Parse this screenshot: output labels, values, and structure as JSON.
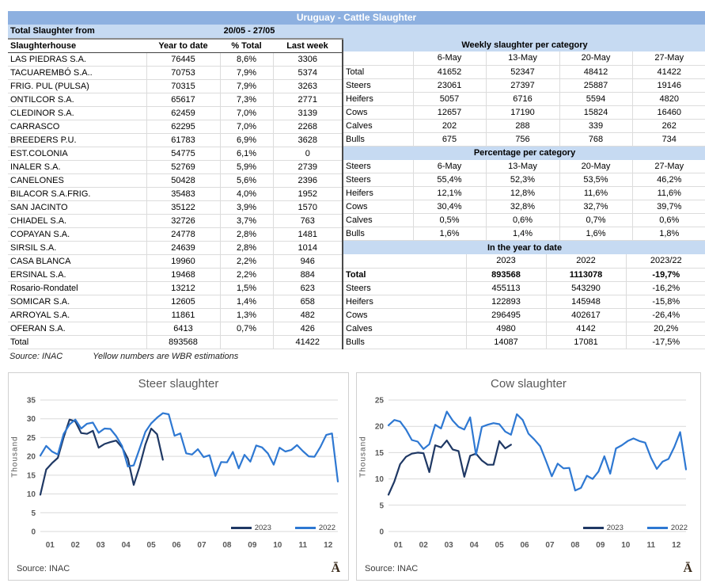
{
  "header": {
    "title": "Uruguay - Cattle Slaughter",
    "period_label": "Total Slaughter from",
    "period_value": "20/05 - 27/05"
  },
  "left_table": {
    "headers": [
      "Slaughterhouse",
      "Year to date",
      "% Total",
      "Last week"
    ],
    "rows": [
      [
        "LAS PIEDRAS S.A.",
        "76445",
        "8,6%",
        "3306"
      ],
      [
        "TACUAREMBÓ S.A..",
        "70753",
        "7,9%",
        "5374"
      ],
      [
        "FRIG. PUL (PULSA)",
        "70315",
        "7,9%",
        "3263"
      ],
      [
        "ONTILCOR S.A.",
        "65617",
        "7,3%",
        "2771"
      ],
      [
        "CLEDINOR S.A.",
        "62459",
        "7,0%",
        "3139"
      ],
      [
        "CARRASCO",
        "62295",
        "7,0%",
        "2268"
      ],
      [
        "BREEDERS P.U.",
        "61783",
        "6,9%",
        "3628"
      ],
      [
        "EST.COLONIA",
        "54775",
        "6,1%",
        "0"
      ],
      [
        "INALER S.A.",
        "52769",
        "5,9%",
        "2739"
      ],
      [
        "CANELONES",
        "50428",
        "5,6%",
        "2396"
      ],
      [
        "BILACOR S.A.FRIG.",
        "35483",
        "4,0%",
        "1952"
      ],
      [
        "SAN JACINTO",
        "35122",
        "3,9%",
        "1570"
      ],
      [
        "CHIADEL S.A.",
        "32726",
        "3,7%",
        "763"
      ],
      [
        "COPAYAN S.A.",
        "24778",
        "2,8%",
        "1481"
      ],
      [
        "SIRSIL S.A.",
        "24639",
        "2,8%",
        "1014"
      ],
      [
        "CASA BLANCA",
        "19960",
        "2,2%",
        "946"
      ],
      [
        "ERSINAL S.A.",
        "19468",
        "2,2%",
        "884"
      ],
      [
        "Rosario-Rondatel",
        "13212",
        "1,5%",
        "623"
      ],
      [
        "SOMICAR S.A.",
        "12605",
        "1,4%",
        "658"
      ],
      [
        "ARROYAL S.A.",
        "11861",
        "1,3%",
        "482"
      ],
      [
        "OFERAN S.A.",
        "6413",
        "0,7%",
        "426"
      ],
      [
        "Total",
        "893568",
        "",
        "41422"
      ]
    ]
  },
  "right_tables": {
    "weekly": {
      "title": "Weekly slaughter per category",
      "rows": [
        [
          "",
          "6-May",
          "13-May",
          "20-May",
          "27-May"
        ],
        [
          "Total",
          "41652",
          "52347",
          "48412",
          "41422"
        ],
        [
          "Steers",
          "23061",
          "27397",
          "25887",
          "19146"
        ],
        [
          "Heifers",
          "5057",
          "6716",
          "5594",
          "4820"
        ],
        [
          "Cows",
          "12657",
          "17190",
          "15824",
          "16460"
        ],
        [
          "Calves",
          "202",
          "288",
          "339",
          "262"
        ],
        [
          "Bulls",
          "675",
          "756",
          "768",
          "734"
        ]
      ]
    },
    "percentage": {
      "title": "Percentage per category",
      "rows": [
        [
          "Steers",
          "6-May",
          "13-May",
          "20-May",
          "27-May"
        ],
        [
          "Steers",
          "55,4%",
          "52,3%",
          "53,5%",
          "46,2%"
        ],
        [
          "Heifers",
          "12,1%",
          "12,8%",
          "11,6%",
          "11,6%"
        ],
        [
          "Cows",
          "30,4%",
          "32,8%",
          "32,7%",
          "39,7%"
        ],
        [
          "Calves",
          "0,5%",
          "0,6%",
          "0,7%",
          "0,6%"
        ],
        [
          "Bulls",
          "1,6%",
          "1,4%",
          "1,6%",
          "1,8%"
        ]
      ]
    },
    "ytd": {
      "title": "In the year to date",
      "rows": [
        [
          "",
          "2023",
          "2022",
          "2023/22"
        ],
        [
          "Total",
          "893568",
          "1113078",
          "-19,7%"
        ],
        [
          "Steers",
          "455113",
          "543290",
          "-16,2%"
        ],
        [
          "Heifers",
          "122893",
          "145948",
          "-15,8%"
        ],
        [
          "Cows",
          "296495",
          "402617",
          "-26,4%"
        ],
        [
          "Calves",
          "4980",
          "4142",
          "20,2%"
        ],
        [
          "Bulls",
          "14087",
          "17081",
          "-17,5%"
        ]
      ]
    }
  },
  "footnote": {
    "source": "Source: INAC",
    "note": "Yellow numbers are WBR estimations"
  },
  "colors": {
    "title_bar": "#8DB0E0",
    "band": "#C6DAF2",
    "line_2023": "#1F3864",
    "line_2022": "#2E78D2"
  },
  "chart_data": [
    {
      "type": "line",
      "title": "Steer slaughter",
      "ylabel": "Thousand",
      "ylim": [
        0,
        35
      ],
      "ytick_step": 5,
      "grid": true,
      "legend_position": "bottom-right",
      "x_weeks": 52,
      "x_months": [
        "01",
        "02",
        "03",
        "04",
        "05",
        "06",
        "07",
        "08",
        "09",
        "10",
        "11",
        "12"
      ],
      "source": "Source: INAC",
      "logo_glyph": "Ā",
      "series": [
        {
          "name": "2023",
          "color": "#1F3864",
          "values": [
            9.8,
            16.5,
            18.2,
            19.6,
            25.1,
            29.8,
            29.3,
            26.2,
            26.0,
            26.8,
            22.3,
            23.3,
            23.8,
            24.2,
            22.4,
            19.4,
            12.4,
            17.2,
            23.1,
            27.4,
            25.9,
            19.1
          ]
        },
        {
          "name": "2022",
          "color": "#2E78D2",
          "values": [
            20.2,
            22.8,
            21.3,
            20.5,
            26.0,
            28.5,
            29.8,
            27.4,
            28.7,
            29.0,
            26.3,
            27.4,
            27.3,
            25.4,
            22.8,
            17.3,
            17.6,
            22.0,
            26.5,
            28.8,
            30.3,
            31.5,
            31.2,
            25.5,
            26.1,
            20.8,
            20.5,
            21.9,
            19.8,
            20.3,
            14.8,
            18.5,
            18.4,
            21.2,
            16.8,
            20.4,
            18.6,
            22.9,
            22.4,
            20.8,
            17.8,
            22.3,
            21.3,
            21.7,
            23.0,
            21.4,
            20.0,
            19.9,
            22.5,
            25.7,
            26.1,
            13.3
          ]
        }
      ]
    },
    {
      "type": "line",
      "title": "Cow slaughter",
      "ylabel": "Thousand",
      "ylim": [
        0,
        25
      ],
      "ytick_step": 5,
      "grid": true,
      "legend_position": "bottom-right",
      "x_weeks": 52,
      "x_months": [
        "01",
        "02",
        "03",
        "04",
        "05",
        "06",
        "07",
        "08",
        "09",
        "10",
        "11",
        "12"
      ],
      "source": "Source: INAC",
      "logo_glyph": "Ā",
      "series": [
        {
          "name": "2023",
          "color": "#1F3864",
          "values": [
            7.0,
            9.5,
            12.8,
            14.2,
            14.8,
            15.0,
            14.9,
            11.3,
            16.4,
            16.0,
            17.3,
            15.6,
            15.3,
            10.4,
            14.4,
            14.8,
            13.5,
            12.7,
            12.7,
            17.2,
            15.8,
            16.5
          ]
        },
        {
          "name": "2022",
          "color": "#2E78D2",
          "values": [
            20.2,
            21.2,
            20.9,
            19.4,
            17.4,
            17.1,
            15.7,
            16.6,
            20.3,
            19.6,
            22.8,
            21.1,
            19.9,
            19.4,
            21.7,
            14.6,
            19.9,
            20.3,
            20.6,
            20.4,
            19.0,
            18.4,
            22.3,
            21.2,
            18.6,
            17.5,
            16.2,
            13.4,
            10.5,
            12.9,
            12.0,
            12.1,
            7.8,
            8.3,
            10.6,
            10.0,
            11.4,
            14.3,
            11.0,
            15.8,
            16.4,
            17.2,
            17.7,
            17.2,
            16.9,
            14.0,
            11.9,
            13.3,
            13.8,
            16.1,
            18.9,
            11.8
          ]
        }
      ]
    }
  ]
}
